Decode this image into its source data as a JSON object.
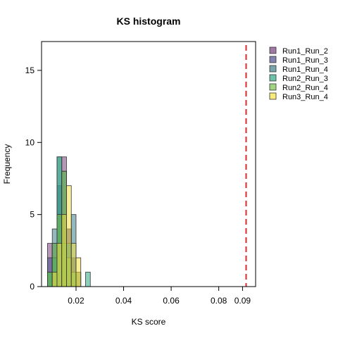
{
  "chart_data": {
    "type": "histogram",
    "title": "KS histogram",
    "xlabel": "KS score",
    "ylabel": "Frequency",
    "xlim": [
      0.0055,
      0.0955
    ],
    "ylim": [
      0,
      17
    ],
    "x_ticks": [
      0.02,
      0.04,
      0.06,
      0.08,
      0.09
    ],
    "x_tick_labels": [
      "0.02",
      "0.04",
      "0.06",
      "0.08",
      "0.09"
    ],
    "y_ticks": [
      0,
      5,
      10,
      15
    ],
    "y_tick_labels": [
      "0",
      "5",
      "10",
      "15"
    ],
    "bin_edges": [
      0.008,
      0.01,
      0.012,
      0.014,
      0.016,
      0.018,
      0.02,
      0.022,
      0.024,
      0.026,
      0.028
    ],
    "threshold": 0.0915,
    "threshold_color": "#dd2a2a",
    "legend_position": "right",
    "series": [
      {
        "name": "Run1_Run_2",
        "color": "#7b3f7e",
        "counts": [
          3,
          2,
          5,
          9,
          4,
          2,
          1,
          0,
          0,
          0
        ]
      },
      {
        "name": "Run1_Run_3",
        "color": "#4b4f8f",
        "counts": [
          2,
          3,
          7,
          5,
          4,
          2,
          0,
          0,
          0,
          0
        ]
      },
      {
        "name": "Run1_Run_4",
        "color": "#3f7f88",
        "counts": [
          1,
          4,
          9,
          8,
          3,
          5,
          0,
          0,
          0,
          0
        ]
      },
      {
        "name": "Run2_Run_3",
        "color": "#2ea783",
        "counts": [
          1,
          2,
          9,
          3,
          3,
          1,
          0,
          0,
          1,
          0
        ]
      },
      {
        "name": "Run2_Run_4",
        "color": "#78c24b",
        "counts": [
          1,
          3,
          5,
          8,
          2,
          1,
          1,
          0,
          0,
          0
        ]
      },
      {
        "name": "Run3_Run_4",
        "color": "#f5e240",
        "counts": [
          0,
          1,
          3,
          5,
          7,
          3,
          2,
          0,
          0,
          0
        ]
      }
    ]
  }
}
